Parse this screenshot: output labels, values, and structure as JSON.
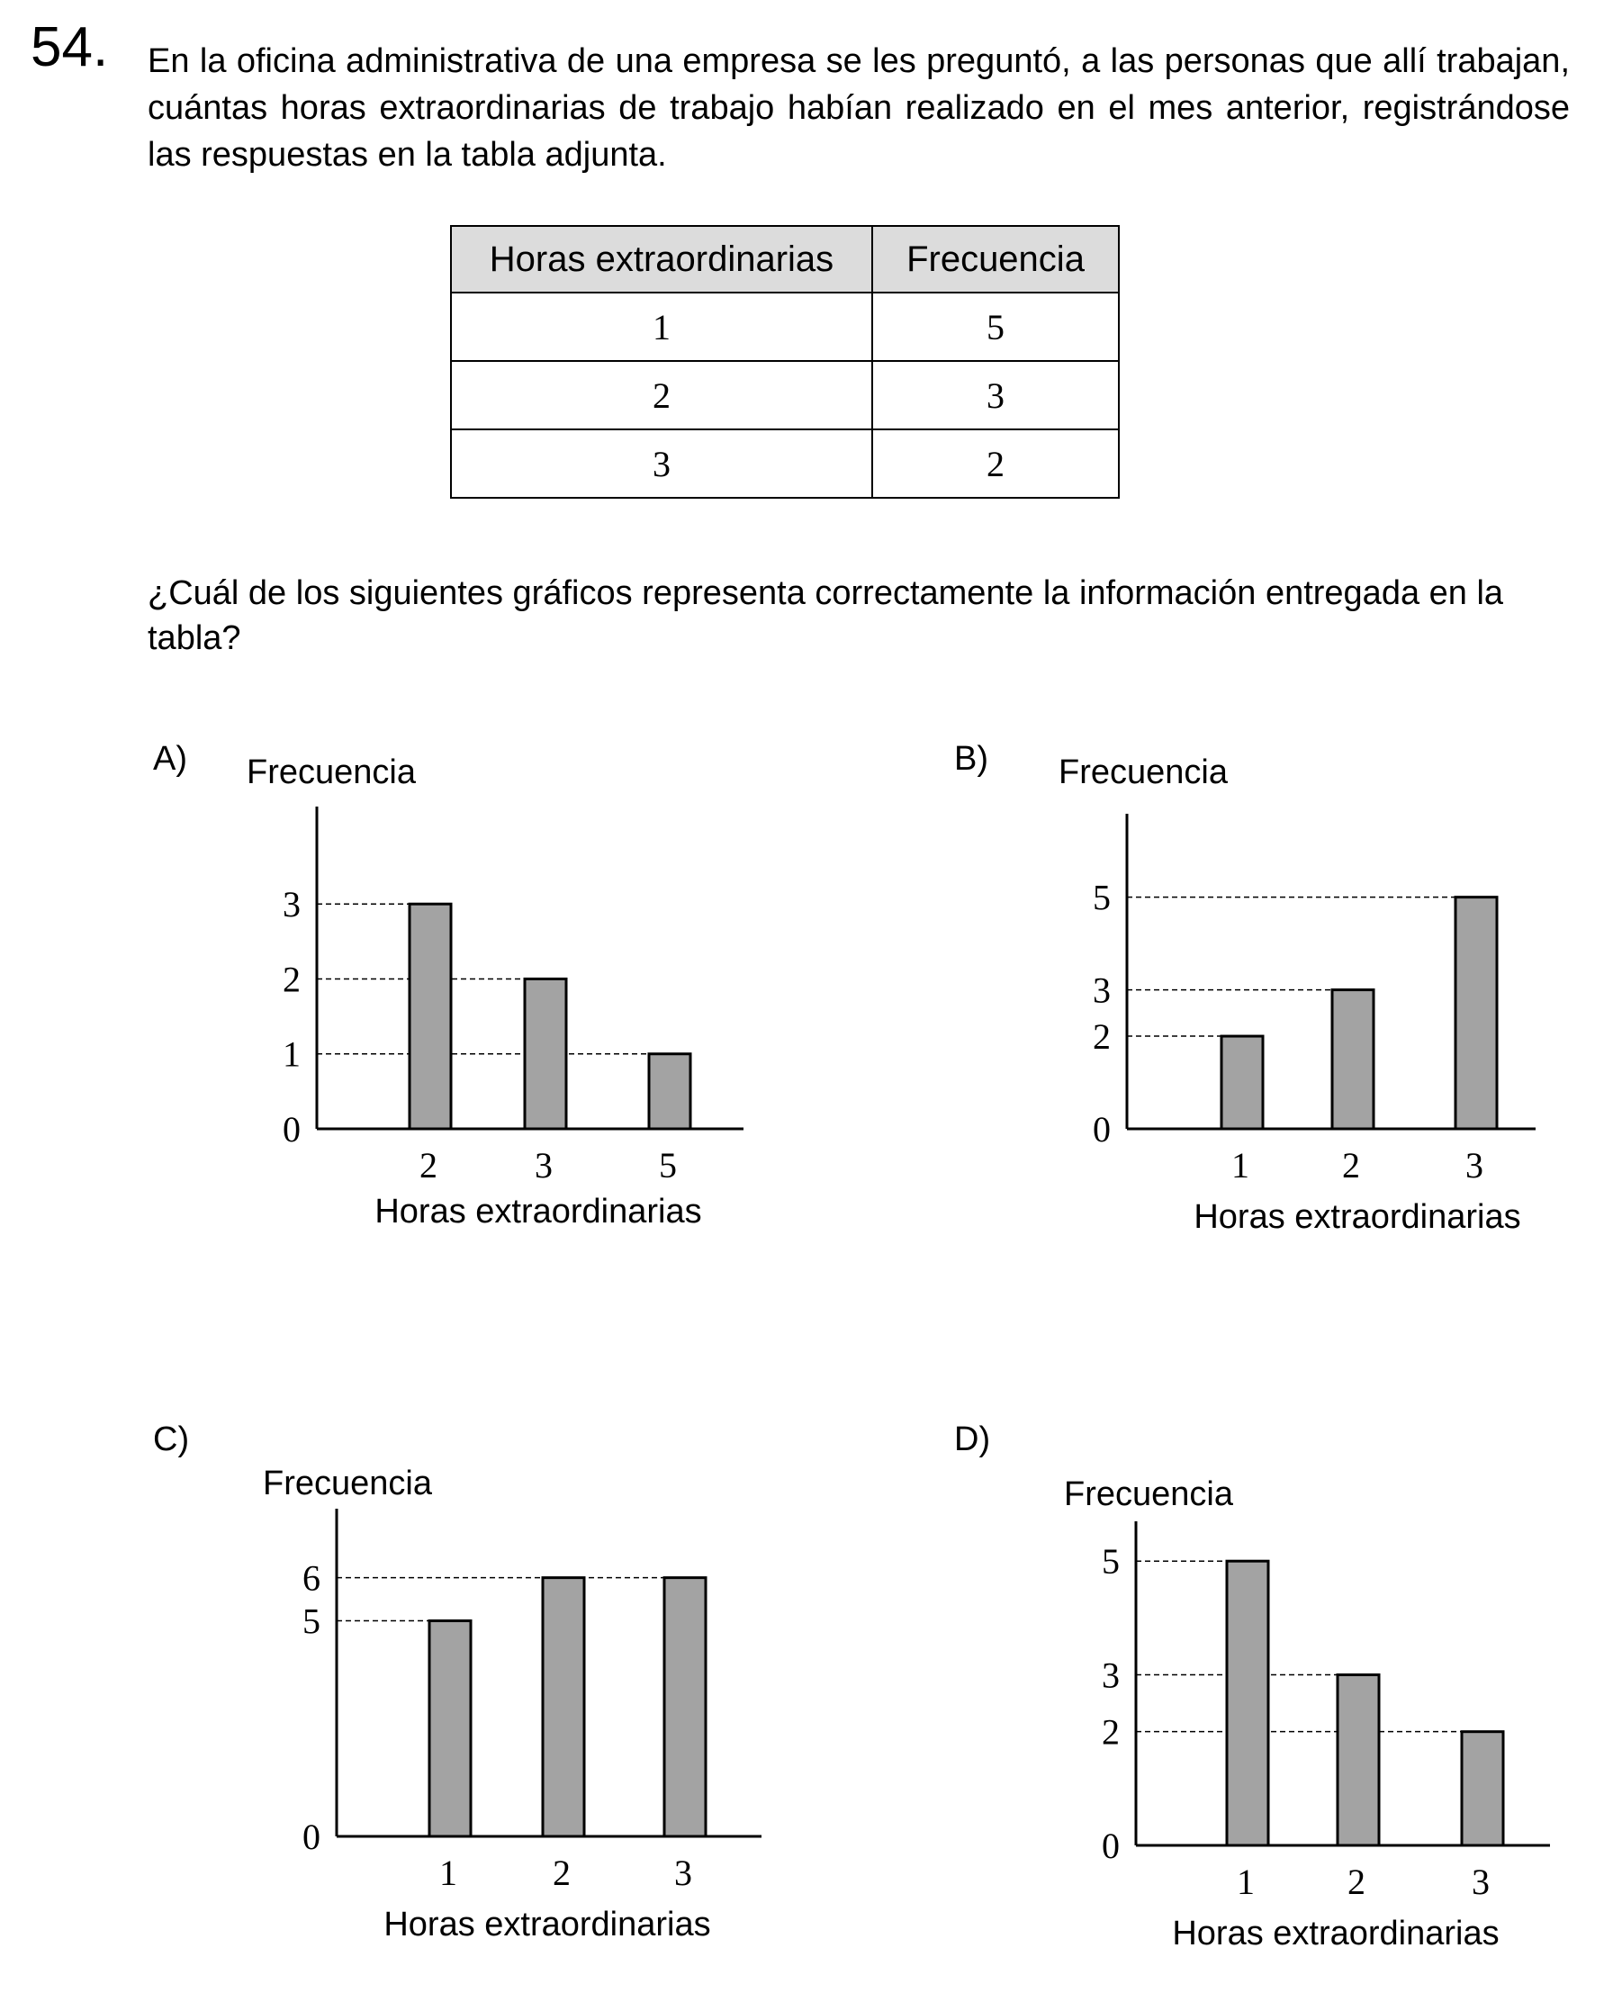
{
  "question": {
    "number": "54.",
    "stem": "En la oficina administrativa de una empresa se les preguntó, a las personas que allí trabajan, cuántas horas extraordinarias de trabajo habían realizado en el mes anterior, registrándose las respuestas en la tabla adjunta.",
    "prompt": "¿Cuál de los siguientes gráficos representa correctamente la información entregada en la tabla?"
  },
  "table": {
    "headers": [
      "Horas extraordinarias",
      "Frecuencia"
    ],
    "rows": [
      [
        "1",
        "5"
      ],
      [
        "2",
        "3"
      ],
      [
        "3",
        "2"
      ]
    ]
  },
  "options": [
    {
      "label": "A)"
    },
    {
      "label": "B)"
    },
    {
      "label": "C)"
    },
    {
      "label": "D)"
    }
  ],
  "chart_data": [
    {
      "type": "bar",
      "option": "A)",
      "ylabel": "Frecuencia",
      "xlabel": "Horas extraordinarias",
      "categories": [
        "2",
        "3",
        "5"
      ],
      "values": [
        3,
        2,
        1
      ],
      "yticks": [
        "0",
        "1",
        "2",
        "3"
      ],
      "ylim": [
        0,
        4.3
      ],
      "reference_lines": [
        1,
        2,
        3
      ],
      "grid": false
    },
    {
      "type": "bar",
      "option": "B)",
      "ylabel": "Frecuencia",
      "xlabel": "Horas extraordinarias",
      "categories": [
        "1",
        "2",
        "3"
      ],
      "values": [
        2,
        3,
        5
      ],
      "yticks": [
        "0",
        "2",
        "3",
        "5"
      ],
      "ylim": [
        0,
        6.8
      ],
      "reference_lines": [
        2,
        3,
        5
      ],
      "grid": false
    },
    {
      "type": "bar",
      "option": "C)",
      "ylabel": "Frecuencia",
      "xlabel": "Horas extraordinarias",
      "categories": [
        "1",
        "2",
        "3"
      ],
      "values": [
        5,
        6,
        6
      ],
      "yticks": [
        "0",
        "5",
        "6"
      ],
      "ylim": [
        0,
        7.6
      ],
      "reference_lines": [
        5,
        6
      ],
      "grid": false
    },
    {
      "type": "bar",
      "option": "D)",
      "ylabel": "Frecuencia",
      "xlabel": "Horas extraordinarias",
      "categories": [
        "1",
        "2",
        "3"
      ],
      "values": [
        5,
        3,
        2
      ],
      "yticks": [
        "0",
        "2",
        "3",
        "5"
      ],
      "ylim": [
        0,
        5.7
      ],
      "reference_lines": [
        2,
        3,
        5
      ],
      "grid": false
    }
  ]
}
